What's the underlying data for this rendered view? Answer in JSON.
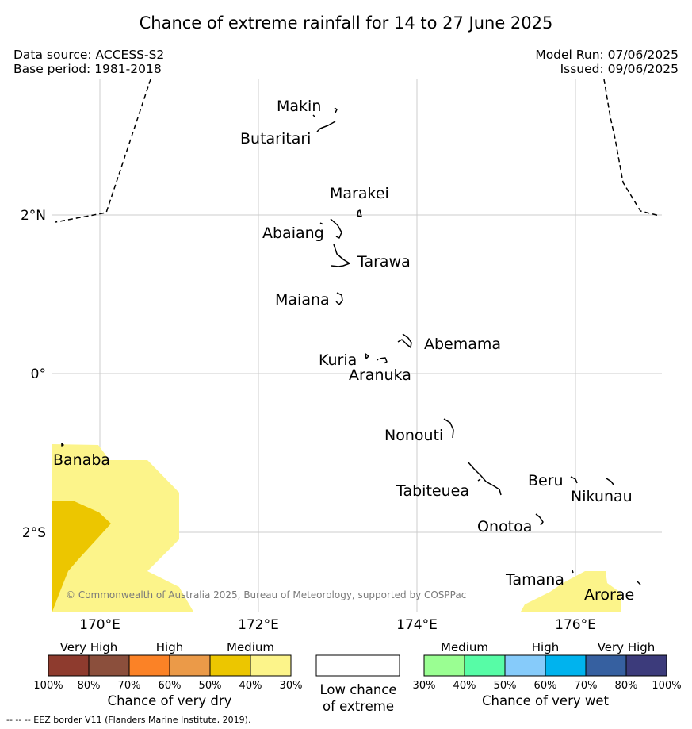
{
  "title": "Chance of extreme rainfall for 14 to 27 June 2025",
  "data_source": "Data source: ACCESS-S2",
  "base_period": "Base period: 1981-2018",
  "model_run": "Model Run: 07/06/2025",
  "issued": "Issued: 09/06/2025",
  "map": {
    "lon_ticks": [
      "170°E",
      "172°E",
      "174°E",
      "176°E"
    ],
    "lat_ticks": [
      "2°N",
      "0°",
      "2°S"
    ],
    "islands": [
      "Makin",
      "Butaritari",
      "Marakei",
      "Abaiang",
      "Tarawa",
      "Maiana",
      "Abemama",
      "Kuria",
      "Aranuka",
      "Nonouti",
      "Banaba",
      "Tabiteuea",
      "Beru",
      "Nikunau",
      "Onotoa",
      "Tamana",
      "Arorae"
    ],
    "copyright": "© Commonwealth of Australia 2025, Bureau of Meteorology, supported by COSPPac",
    "eez_line_style": "dashed",
    "grid": true
  },
  "legend": {
    "dry": {
      "groups": [
        "Very High",
        "High",
        "Medium"
      ],
      "colors": [
        "#8e3b2e",
        "#8b4f3c",
        "#fb8226",
        "#eb9a48",
        "#ecc600",
        "#fcf48a"
      ],
      "ticks": [
        "100%",
        "80%",
        "70%",
        "60%",
        "50%",
        "40%",
        "30%"
      ],
      "title": "Chance of very dry"
    },
    "low": {
      "color": "#ffffff",
      "title_line1": "Low chance",
      "title_line2": "of extreme"
    },
    "wet": {
      "groups": [
        "Medium",
        "High",
        "Very High"
      ],
      "colors": [
        "#9afe92",
        "#57fca6",
        "#86cbfa",
        "#00b3ee",
        "#3660a0",
        "#3c3b7b"
      ],
      "ticks": [
        "30%",
        "40%",
        "50%",
        "60%",
        "70%",
        "80%",
        "100%"
      ],
      "title": "Chance of very wet"
    }
  },
  "footnote": "--  --  -- EEZ border V11 (Flanders Marine Institute, 2019).",
  "colors": {
    "very_dry_medium_40_50": "#ecc600",
    "very_dry_medium_30_40": "#fcf48a",
    "grid": "#cccccc"
  }
}
